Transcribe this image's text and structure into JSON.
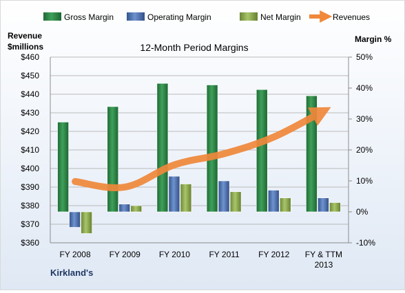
{
  "chart_data": {
    "type": "bar",
    "title": "12-Month Period Margins",
    "categories": [
      "FY 2008",
      "FY 2009",
      "FY 2010",
      "FY 2011",
      "FY 2012",
      "FY & TTM 2013"
    ],
    "series": [
      {
        "name": "Gross Margin",
        "values": [
          29.0,
          34.0,
          41.5,
          41.0,
          39.5,
          37.5
        ],
        "color": "#2e8b46",
        "axis": "right"
      },
      {
        "name": "Operating Margin",
        "values": [
          -5.0,
          2.5,
          11.5,
          10.0,
          7.0,
          4.5
        ],
        "color": "#4a6fb0",
        "axis": "right"
      },
      {
        "name": "Net Margin",
        "values": [
          -7.0,
          2.0,
          9.0,
          6.5,
          4.5,
          3.0
        ],
        "color": "#89a84e",
        "axis": "right"
      },
      {
        "name": "Revenues",
        "type": "line",
        "values": [
          393,
          390,
          402,
          408,
          417,
          431
        ],
        "color": "#f0883b",
        "axis": "left"
      }
    ],
    "left_axis": {
      "label": "Revenue\n$millions",
      "ylim": [
        360,
        460
      ],
      "ticks": [
        "$360",
        "$370",
        "$380",
        "$390",
        "$400",
        "$410",
        "$420",
        "$430",
        "$440",
        "$450",
        "$460"
      ]
    },
    "right_axis": {
      "label": "Margin %",
      "ylim": [
        -10,
        50
      ],
      "ticks": [
        "-10%",
        "0%",
        "10%",
        "20%",
        "30%",
        "40%",
        "50%"
      ]
    },
    "grid": true,
    "legend_position": "top",
    "annotation": "Kirkland's"
  }
}
